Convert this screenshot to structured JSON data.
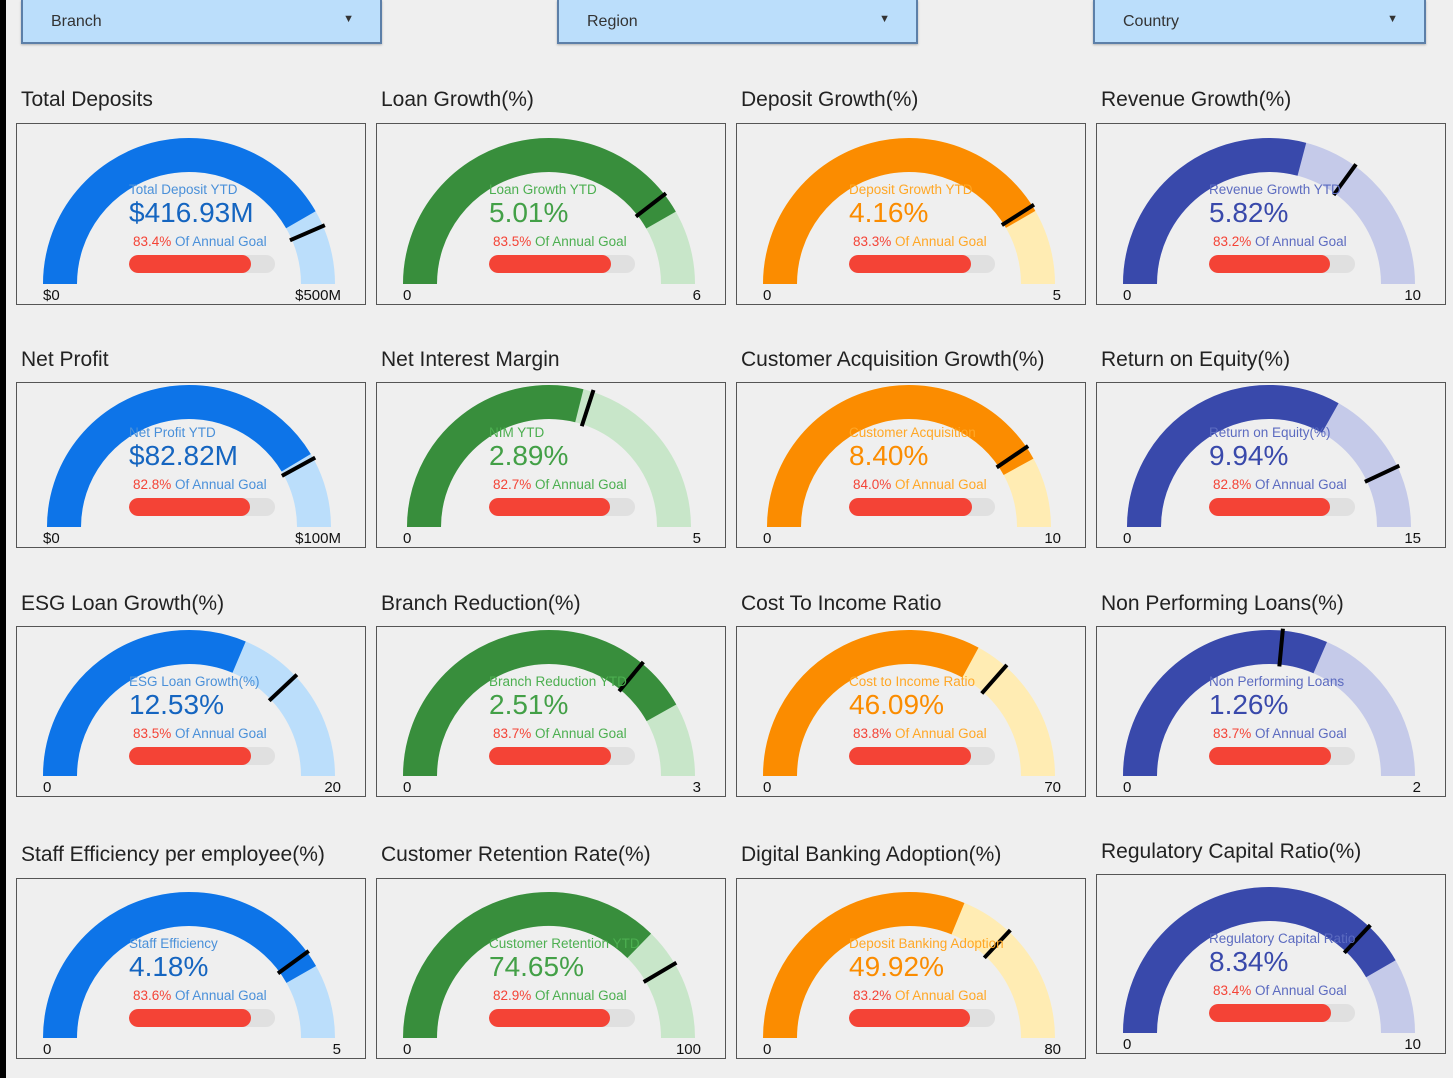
{
  "filters": [
    {
      "label": "Branch"
    },
    {
      "label": "Region"
    },
    {
      "label": "Country"
    }
  ],
  "colors": {
    "blue": {
      "main": "#0d74e8",
      "light": "#bbdefb",
      "text": "#1565c0",
      "label": "#4a90d9"
    },
    "green": {
      "main": "#388e3c",
      "light": "#c8e6c9",
      "text": "#43a047",
      "label": "#4caf50"
    },
    "orange": {
      "main": "#fb8c00",
      "light": "#ffecb3",
      "text": "#fb8c00",
      "label": "#ffa726"
    },
    "indigo": {
      "main": "#3949ab",
      "light": "#c5cae9",
      "text": "#3949ab",
      "label": "#5c6bc0"
    },
    "goal_bar": "#f44336",
    "needle": "#000000"
  },
  "cards": [
    {
      "title": "Total Deposits",
      "label": "Total Deposit YTD",
      "value": "$416.93M",
      "goal_pct": "83.4%",
      "goal_text": "Of Annual Goal",
      "goal_fraction": 0.834,
      "min": "$0",
      "max": "$500M",
      "value_fraction": 0.834,
      "needle_fraction": 0.87,
      "color": "blue"
    },
    {
      "title": "Loan Growth(%)",
      "label": "Loan Growth YTD",
      "value": "5.01%",
      "goal_pct": "83.5%",
      "goal_text": "Of Annual Goal",
      "goal_fraction": 0.835,
      "min": "0",
      "max": "6",
      "value_fraction": 0.835,
      "needle_fraction": 0.79,
      "color": "green"
    },
    {
      "title": "Deposit Growth(%)",
      "label": "Deposit Growth YTD",
      "value": "4.16%",
      "goal_pct": "83.3%",
      "goal_text": "Of Annual Goal",
      "goal_fraction": 0.833,
      "min": "0",
      "max": "5",
      "value_fraction": 0.833,
      "needle_fraction": 0.82,
      "color": "orange"
    },
    {
      "title": "Revenue Growth(%)",
      "label": "Revenue Growth YTD",
      "value": "5.82%",
      "goal_pct": "83.2%",
      "goal_text": "Of Annual Goal",
      "goal_fraction": 0.832,
      "min": "0",
      "max": "10",
      "value_fraction": 0.582,
      "needle_fraction": 0.7,
      "color": "indigo"
    },
    {
      "title": "Net Profit",
      "label": "Net Profit YTD",
      "value": "$82.82M",
      "goal_pct": "82.8%",
      "goal_text": "Of Annual Goal",
      "goal_fraction": 0.828,
      "min": "$0",
      "max": "$100M",
      "value_fraction": 0.828,
      "needle_fraction": 0.84,
      "color": "blue"
    },
    {
      "title": "Net Interest Margin",
      "label": "NIM YTD",
      "value": "2.89%",
      "goal_pct": "82.7%",
      "goal_text": "Of Annual Goal",
      "goal_fraction": 0.827,
      "min": "0",
      "max": "5",
      "value_fraction": 0.578,
      "needle_fraction": 0.6,
      "color": "green"
    },
    {
      "title": "Customer Acquisition Growth(%)",
      "label": "Customer Acquisition",
      "value": "8.40%",
      "goal_pct": "84.0%",
      "goal_text": "Of Annual Goal",
      "goal_fraction": 0.84,
      "min": "0",
      "max": "10",
      "value_fraction": 0.84,
      "needle_fraction": 0.81,
      "color": "orange"
    },
    {
      "title": "Return on Equity(%)",
      "label": "Return on Equity(%)",
      "value": "9.94%",
      "goal_pct": "82.8%",
      "goal_text": "Of Annual Goal",
      "goal_fraction": 0.828,
      "min": "0",
      "max": "15",
      "value_fraction": 0.663,
      "needle_fraction": 0.86,
      "color": "indigo"
    },
    {
      "title": "ESG Loan Growth(%)",
      "label": "ESG Loan Growth(%)",
      "value": "12.53%",
      "goal_pct": "83.5%",
      "goal_text": "Of Annual Goal",
      "goal_fraction": 0.835,
      "min": "0",
      "max": "20",
      "value_fraction": 0.627,
      "needle_fraction": 0.76,
      "color": "blue"
    },
    {
      "title": "Branch Reduction(%)",
      "label": "Branch Reduction YTD",
      "value": "2.51%",
      "goal_pct": "83.7%",
      "goal_text": "Of Annual Goal",
      "goal_fraction": 0.837,
      "min": "0",
      "max": "3",
      "value_fraction": 0.837,
      "needle_fraction": 0.72,
      "color": "green"
    },
    {
      "title": "Cost To Income Ratio",
      "label": "Cost to Income Ratio",
      "value": "46.09%",
      "goal_pct": "83.8%",
      "goal_text": "Of Annual Goal",
      "goal_fraction": 0.838,
      "min": "0",
      "max": "70",
      "value_fraction": 0.658,
      "needle_fraction": 0.73,
      "color": "orange"
    },
    {
      "title": "Non Performing Loans(%)",
      "label": "Non Performing Loans",
      "value": "1.26%",
      "goal_pct": "83.7%",
      "goal_text": "Of Annual Goal",
      "goal_fraction": 0.837,
      "min": "0",
      "max": "2",
      "value_fraction": 0.63,
      "needle_fraction": 0.53,
      "color": "indigo"
    },
    {
      "title": "Staff Efficiency per employee(%)",
      "label": "Staff Efficiency",
      "value": "4.18%",
      "goal_pct": "83.6%",
      "goal_text": "Of Annual Goal",
      "goal_fraction": 0.836,
      "min": "0",
      "max": "5",
      "value_fraction": 0.836,
      "needle_fraction": 0.8,
      "color": "blue"
    },
    {
      "title": "Customer Retention Rate(%)",
      "label": "Customer Retention YTD",
      "value": "74.65%",
      "goal_pct": "82.9%",
      "goal_text": "Of Annual Goal",
      "goal_fraction": 0.829,
      "min": "0",
      "max": "100",
      "value_fraction": 0.7465,
      "needle_fraction": 0.83,
      "color": "green"
    },
    {
      "title": "Digital Banking Adoption(%)",
      "label": "Deposit Banking Adoption",
      "value": "49.92%",
      "goal_pct": "83.2%",
      "goal_text": "Of Annual Goal",
      "goal_fraction": 0.832,
      "min": "0",
      "max": "80",
      "value_fraction": 0.624,
      "needle_fraction": 0.74,
      "color": "orange"
    },
    {
      "title": "Regulatory Capital Ratio(%)",
      "label": "Regulatory Capital Ratio",
      "value": "8.34%",
      "goal_pct": "83.4%",
      "goal_text": "Of Annual Goal",
      "goal_fraction": 0.834,
      "min": "0",
      "max": "10",
      "value_fraction": 0.834,
      "needle_fraction": 0.74,
      "color": "indigo"
    }
  ]
}
